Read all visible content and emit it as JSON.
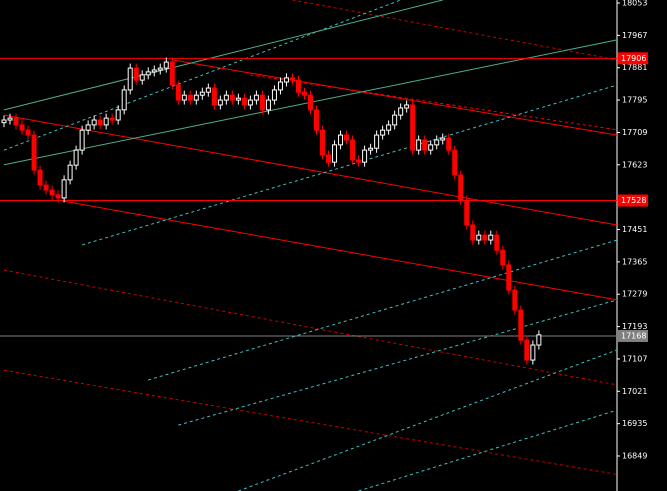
{
  "chart_data": {
    "type": "candlestick",
    "up_color": "#ffffff",
    "down_color": "#ff0000",
    "xlim": [
      0,
      102
    ],
    "ylim": [
      16756,
      18061
    ],
    "yticks": [
      16849,
      16935,
      17021,
      17107,
      17193,
      17279,
      17365,
      17451,
      17623,
      17709,
      17795,
      17881,
      17967,
      18053
    ],
    "open": [
      17735,
      17742,
      17747,
      17729,
      17715,
      17702,
      17609,
      17569,
      17556,
      17543,
      17535,
      17583,
      17622,
      17662,
      17715,
      17729,
      17742,
      17729,
      17747,
      17742,
      17769,
      17822,
      17880,
      17848,
      17862,
      17870,
      17875,
      17880,
      17896,
      17835,
      17795,
      17808,
      17795,
      17808,
      17816,
      17827,
      17782,
      17795,
      17808,
      17795,
      17800,
      17782,
      17795,
      17808,
      17769,
      17795,
      17822,
      17843,
      17854,
      17848,
      17816,
      17808,
      17769,
      17715,
      17649,
      17630,
      17676,
      17702,
      17689,
      17636,
      17630,
      17662,
      17667,
      17702,
      17715,
      17729,
      17755,
      17774,
      17782,
      17662,
      17689,
      17662,
      17676,
      17689,
      17694,
      17662,
      17596,
      17529,
      17463,
      17423,
      17436,
      17423,
      17436,
      17396,
      17357,
      17290,
      17237,
      17157,
      17104,
      17144
    ],
    "high": [
      17754,
      17759,
      17759,
      17741,
      17727,
      17714,
      17621,
      17581,
      17568,
      17555,
      17595,
      17634,
      17674,
      17727,
      17741,
      17754,
      17754,
      17759,
      17759,
      17781,
      17834,
      17892,
      17892,
      17874,
      17882,
      17887,
      17892,
      17908,
      17908,
      17847,
      17820,
      17820,
      17820,
      17828,
      17839,
      17839,
      17807,
      17820,
      17820,
      17812,
      17812,
      17807,
      17820,
      17820,
      17807,
      17834,
      17855,
      17866,
      17866,
      17860,
      17828,
      17820,
      17781,
      17727,
      17661,
      17688,
      17714,
      17714,
      17701,
      17648,
      17674,
      17679,
      17714,
      17727,
      17741,
      17767,
      17786,
      17794,
      17794,
      17701,
      17701,
      17688,
      17701,
      17706,
      17706,
      17674,
      17608,
      17541,
      17475,
      17448,
      17448,
      17448,
      17448,
      17408,
      17369,
      17302,
      17249,
      17169,
      17156,
      17183
    ],
    "low": [
      17723,
      17730,
      17717,
      17703,
      17690,
      17597,
      17557,
      17544,
      17531,
      17523,
      17523,
      17571,
      17610,
      17650,
      17703,
      17717,
      17717,
      17717,
      17730,
      17730,
      17757,
      17810,
      17836,
      17836,
      17850,
      17858,
      17863,
      17868,
      17823,
      17783,
      17783,
      17783,
      17783,
      17796,
      17804,
      17770,
      17770,
      17783,
      17783,
      17783,
      17770,
      17770,
      17783,
      17757,
      17757,
      17783,
      17810,
      17831,
      17836,
      17804,
      17796,
      17757,
      17703,
      17637,
      17618,
      17618,
      17664,
      17677,
      17624,
      17618,
      17618,
      17650,
      17655,
      17690,
      17703,
      17717,
      17743,
      17762,
      17650,
      17650,
      17650,
      17650,
      17664,
      17677,
      17650,
      17584,
      17517,
      17451,
      17411,
      17411,
      17411,
      17411,
      17384,
      17345,
      17278,
      17225,
      17145,
      17092,
      17092,
      17132
    ],
    "close": [
      17742,
      17747,
      17729,
      17715,
      17702,
      17609,
      17569,
      17556,
      17543,
      17535,
      17583,
      17622,
      17662,
      17715,
      17729,
      17742,
      17729,
      17747,
      17742,
      17769,
      17822,
      17880,
      17848,
      17862,
      17870,
      17875,
      17880,
      17896,
      17835,
      17795,
      17808,
      17795,
      17808,
      17816,
      17827,
      17782,
      17795,
      17808,
      17795,
      17800,
      17782,
      17795,
      17808,
      17769,
      17795,
      17822,
      17843,
      17854,
      17848,
      17816,
      17808,
      17769,
      17715,
      17649,
      17630,
      17676,
      17702,
      17689,
      17636,
      17630,
      17662,
      17667,
      17702,
      17715,
      17729,
      17755,
      17774,
      17782,
      17662,
      17689,
      17662,
      17676,
      17689,
      17694,
      17662,
      17596,
      17529,
      17463,
      17423,
      17436,
      17423,
      17436,
      17396,
      17357,
      17290,
      17237,
      17157,
      17104,
      17144,
      17171
    ],
    "price_markers": [
      {
        "value": 17906,
        "color": "#ff0000"
      },
      {
        "value": 17528,
        "color": "#ff0000"
      },
      {
        "value": 17168,
        "color": "#808080"
      }
    ],
    "lines": [
      {
        "x": [
          0,
          102
        ],
        "y": [
          17755,
          17463
        ],
        "color": "#ff0000",
        "dash": false
      },
      {
        "x": [
          9,
          102
        ],
        "y": [
          17529,
          17264
        ],
        "color": "#ff0000",
        "dash": false
      },
      {
        "x": [
          28,
          102
        ],
        "y": [
          17902,
          17702
        ],
        "color": "#ff0000",
        "dash": false
      },
      {
        "x": [
          41,
          102
        ],
        "y": [
          17862,
          17716
        ],
        "color": "#ff0000",
        "dash": true
      },
      {
        "x": [
          0,
          102
        ],
        "y": [
          17343,
          17038
        ],
        "color": "#cc0000",
        "dash": true
      },
      {
        "x": [
          0,
          102
        ],
        "y": [
          17077,
          16800
        ],
        "color": "#cc0000",
        "dash": true
      },
      {
        "x": [
          48,
          102
        ],
        "y": [
          18061,
          17902
        ],
        "color": "#cc0000",
        "dash": true
      },
      {
        "x": [
          13,
          102
        ],
        "y": [
          17410,
          17835
        ],
        "color": "#40c0c0",
        "dash": true
      },
      {
        "x": [
          24,
          102
        ],
        "y": [
          17051,
          17423
        ],
        "color": "#40c0c0",
        "dash": true
      },
      {
        "x": [
          29,
          102
        ],
        "y": [
          16931,
          17264
        ],
        "color": "#40c0c0",
        "dash": true
      },
      {
        "x": [
          39,
          102
        ],
        "y": [
          16756,
          17131
        ],
        "color": "#40c0c0",
        "dash": true
      },
      {
        "x": [
          59,
          102
        ],
        "y": [
          16756,
          16971
        ],
        "color": "#40c0c0",
        "dash": true
      },
      {
        "x": [
          0,
          66
        ],
        "y": [
          17662,
          18061
        ],
        "color": "#40c0c0",
        "dash": true
      },
      {
        "x": [
          0,
          73
        ],
        "y": [
          17769,
          18061
        ],
        "color": "#4caf8f",
        "dash": false
      },
      {
        "x": [
          0,
          102
        ],
        "y": [
          17623,
          17955
        ],
        "color": "#4caf8f",
        "dash": false
      }
    ]
  }
}
